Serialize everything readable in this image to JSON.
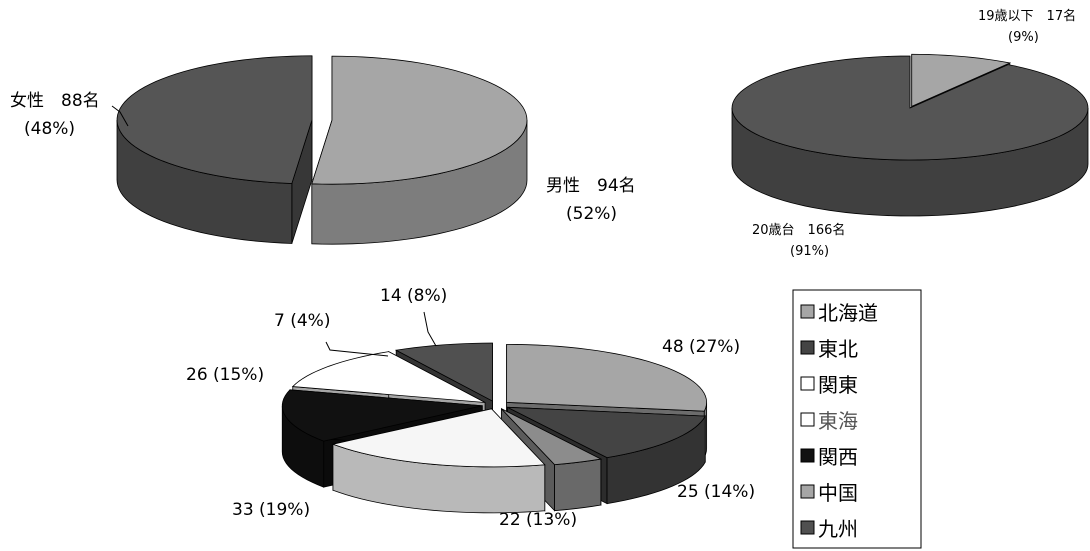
{
  "chart_data": [
    {
      "type": "pie",
      "title": "",
      "categories": [
        "男性",
        "女性"
      ],
      "values": [
        94,
        88
      ],
      "unit": "名",
      "percent_labels": [
        "(52%)",
        "(48%)"
      ],
      "colors": [
        "#a6a6a6",
        "#555555"
      ],
      "data_labels": [
        {
          "line1": "男性　94名",
          "line2": "(52%)"
        },
        {
          "line1": "女性　88名",
          "line2": "(48%)"
        }
      ]
    },
    {
      "type": "pie",
      "title": "",
      "categories": [
        "19歳以下",
        "20歳台"
      ],
      "values": [
        17,
        166
      ],
      "unit": "名",
      "percent_labels": [
        "(9%)",
        "(91%)"
      ],
      "colors": [
        "#a6a6a6",
        "#555555"
      ],
      "data_labels": [
        {
          "line1": "19歳以下　17名",
          "line2": "(9%)"
        },
        {
          "line1": "20歳台　166名",
          "line2": "(91%)"
        }
      ]
    },
    {
      "type": "pie",
      "title": "",
      "categories": [
        "北海道",
        "東北",
        "関東",
        "東海",
        "関西",
        "中国",
        "九州"
      ],
      "values": [
        48,
        25,
        22,
        33,
        26,
        7,
        14
      ],
      "percent_labels": [
        "(27%)",
        "(14%)",
        "(13%)",
        "(19%)",
        "(15%)",
        "(4%)",
        "(8%)"
      ],
      "colors": [
        "#a6a6a6",
        "#444444",
        "#ffffff",
        "#f6f6f6",
        "#111111",
        "#8c8c8c",
        "#505050"
      ],
      "slice_order": [
        0,
        1,
        5,
        3,
        4,
        2,
        6
      ],
      "slice_label_text": [
        "48 (27%)",
        "25 (14%)",
        "22 (13%)",
        "33 (19%)",
        "26 (15%)",
        "7 (4%)",
        "14 (8%)"
      ],
      "legend": {
        "position": "right",
        "entries": [
          "北海道",
          "東北",
          "関東",
          "東海",
          "関西",
          "中国",
          "九州"
        ],
        "swatch_colors": [
          "#a6a6a6",
          "#444444",
          "#ffffff",
          "#ffffff",
          "#111111",
          "#a6a6a6",
          "#505050"
        ],
        "text_colors": [
          "#000000",
          "#000000",
          "#000000",
          "#555555",
          "#000000",
          "#000000",
          "#000000"
        ]
      }
    }
  ]
}
